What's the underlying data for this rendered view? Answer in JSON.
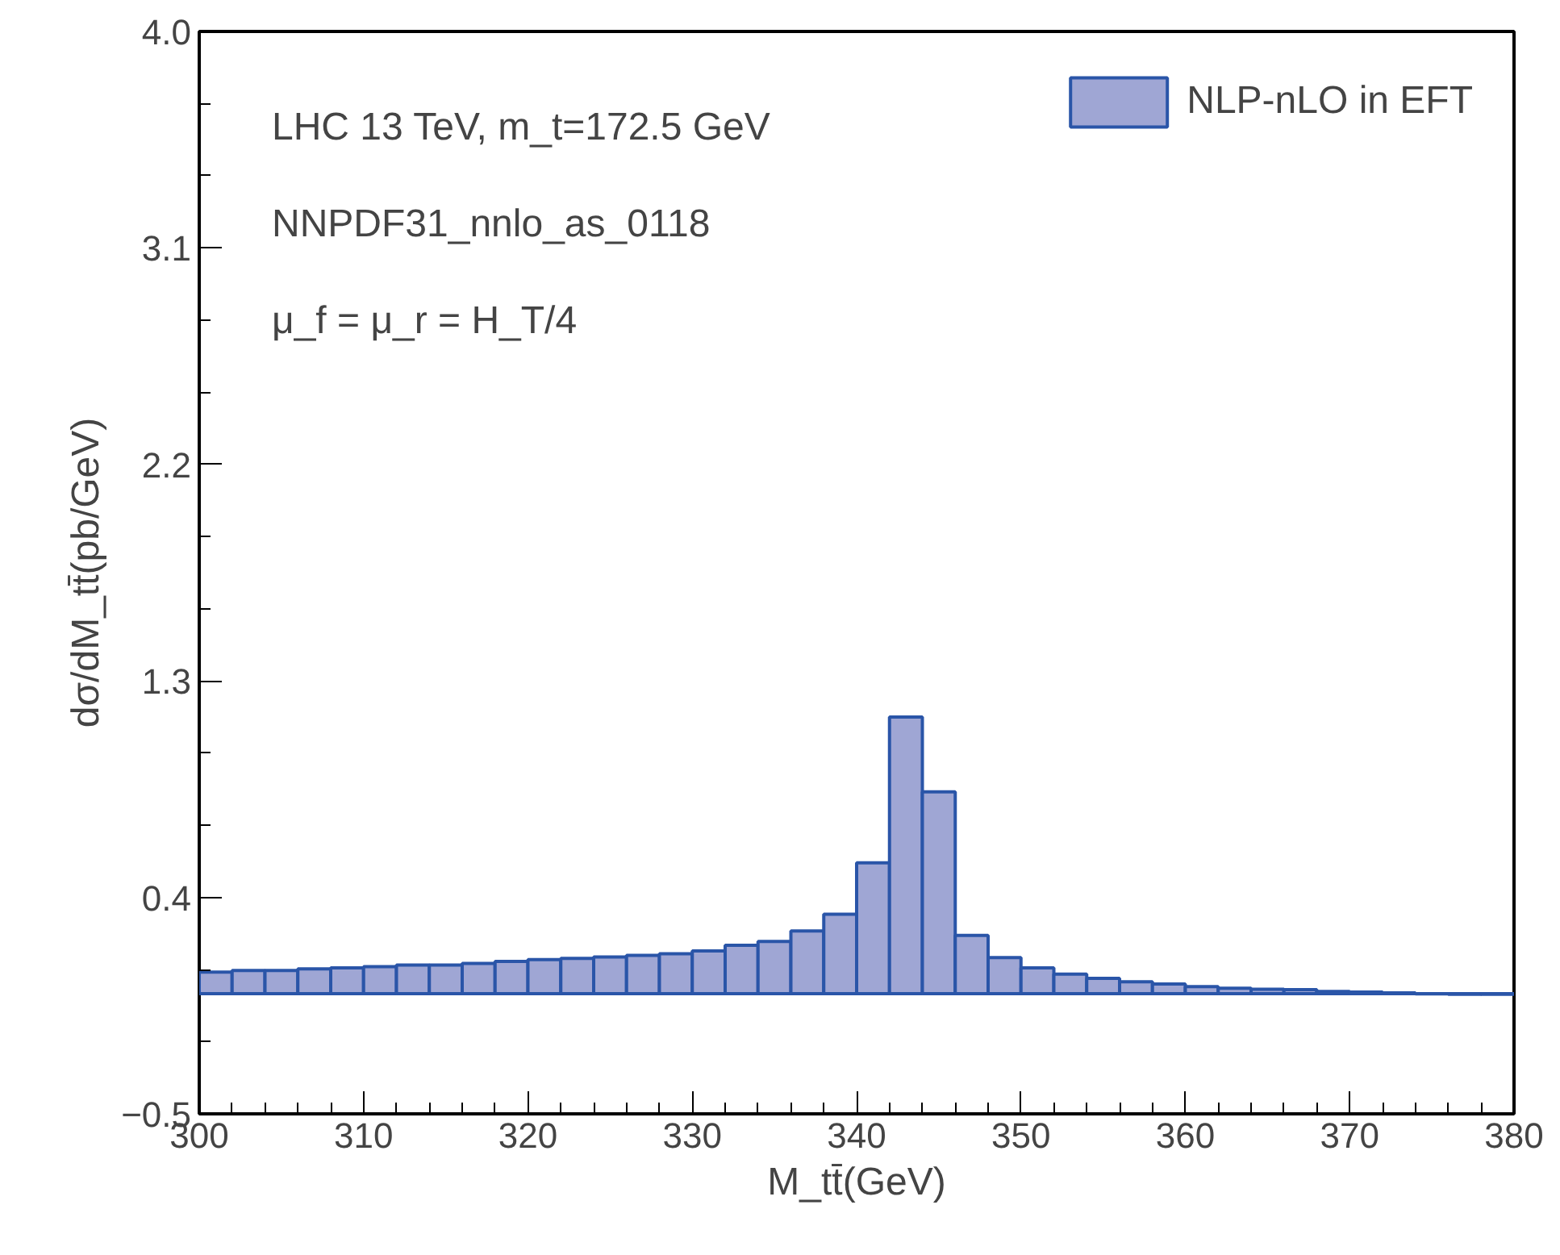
{
  "chart_data": {
    "type": "histogram",
    "xlabel": "M_tt̄(GeV)",
    "ylabel": "dσ/dM_tt̄(pb/GeV)",
    "annotations": [
      "LHC 13 TeV, m_t=172.5 GeV",
      "NNPDF31_nnlo_as_0118",
      "μ_f = μ_r = H_T/4"
    ],
    "bins": [
      300,
      302,
      304,
      306,
      308,
      310,
      312,
      314,
      316,
      318,
      320,
      322,
      324,
      326,
      328,
      330,
      332,
      334,
      336,
      338,
      340,
      342,
      344,
      346,
      348,
      350,
      352,
      354,
      356,
      358,
      360,
      362,
      364,
      366,
      368,
      370,
      372,
      374,
      376,
      378,
      380
    ],
    "series": [
      {
        "name": "NLP-nLO in EFT",
        "color": "#9fa6d4",
        "values": [
          0.089,
          0.096,
          0.096,
          0.103,
          0.107,
          0.112,
          0.119,
          0.119,
          0.125,
          0.134,
          0.141,
          0.146,
          0.152,
          0.159,
          0.166,
          0.177,
          0.201,
          0.217,
          0.26,
          0.33,
          0.544,
          1.15,
          0.839,
          0.242,
          0.15,
          0.107,
          0.081,
          0.063,
          0.049,
          0.04,
          0.029,
          0.022,
          0.018,
          0.016,
          0.009,
          0.006,
          0.003,
          -0.001,
          -0.003,
          -0.003
        ]
      }
    ],
    "xlim": [
      300,
      380
    ],
    "xticks": [
      300,
      310,
      320,
      330,
      340,
      350,
      360,
      370,
      380
    ],
    "ylim": [
      -0.5,
      4.0
    ],
    "yticks": [
      {
        "value": -0.5,
        "label": "−0.5"
      },
      0.4,
      1.3,
      2.2,
      3.1,
      {
        "value": 4.0,
        "label": "4.0"
      }
    ],
    "legend": "top right",
    "grid": false
  }
}
